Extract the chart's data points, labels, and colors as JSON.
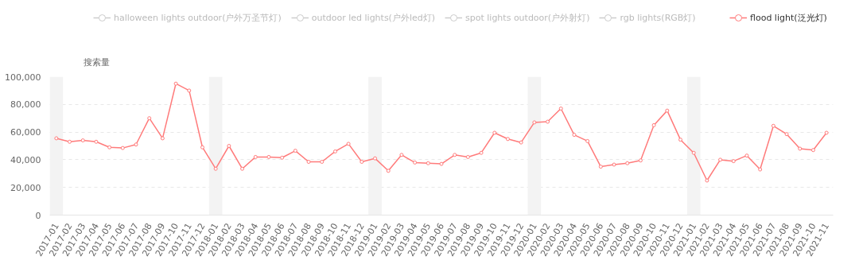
{
  "chart_data": {
    "type": "line",
    "ylabel": "搜索量",
    "categories": [
      "2017-01",
      "2017-02",
      "2017-03",
      "2017-04",
      "2017-05",
      "2017-06",
      "2017-07",
      "2017-08",
      "2017-09",
      "2017-10",
      "2017-11",
      "2017-12",
      "2018-01",
      "2018-02",
      "2018-03",
      "2018-04",
      "2018-05",
      "2018-06",
      "2018-07",
      "2018-08",
      "2018-09",
      "2018-10",
      "2018-11",
      "2018-12",
      "2019-01",
      "2019-02",
      "2019-03",
      "2019-04",
      "2019-05",
      "2019-06",
      "2019-07",
      "2019-08",
      "2019-09",
      "2019-10",
      "2019-11",
      "2019-12",
      "2020-01",
      "2020-02",
      "2020-03",
      "2020-04",
      "2020-05",
      "2020-06",
      "2020-07",
      "2020-08",
      "2020-09",
      "2020-10",
      "2020-11",
      "2020-12",
      "2021-01",
      "2021-02",
      "2021-03",
      "2021-04",
      "2021-05",
      "2021-06",
      "2021-07",
      "2021-08",
      "2021-09",
      "2021-10",
      "2021-11"
    ],
    "series": [
      {
        "name": "halloween lights outdoor(户外万圣节灯)",
        "color": "#cccccc",
        "values": [
          null,
          null,
          null,
          null,
          null,
          null,
          null,
          null,
          null,
          null,
          null,
          null,
          null,
          null,
          null,
          null,
          null,
          null,
          null,
          null,
          null,
          null,
          null,
          null,
          null,
          null,
          null,
          null,
          null,
          null,
          null,
          null,
          null,
          null,
          null,
          null,
          null,
          null,
          null,
          null,
          null,
          null,
          null,
          null,
          null,
          null,
          null,
          null,
          null,
          null,
          null,
          null,
          null,
          null,
          null,
          null,
          null,
          null,
          null
        ]
      },
      {
        "name": "outdoor led lights(户外led灯)",
        "color": "#cccccc",
        "values": [
          null,
          null,
          null,
          null,
          null,
          null,
          null,
          null,
          null,
          null,
          null,
          null,
          null,
          null,
          null,
          null,
          null,
          null,
          null,
          null,
          null,
          null,
          null,
          null,
          null,
          null,
          null,
          null,
          null,
          null,
          null,
          null,
          null,
          null,
          null,
          null,
          null,
          null,
          null,
          null,
          null,
          null,
          null,
          null,
          null,
          null,
          null,
          null,
          null,
          null,
          null,
          null,
          null,
          null,
          null,
          null,
          null,
          null,
          null
        ]
      },
      {
        "name": "spot lights outdoor(户外射灯)",
        "color": "#cccccc",
        "values": [
          null,
          null,
          null,
          null,
          null,
          null,
          null,
          null,
          null,
          null,
          null,
          null,
          null,
          null,
          null,
          null,
          null,
          null,
          null,
          null,
          null,
          null,
          null,
          null,
          null,
          null,
          null,
          null,
          null,
          null,
          null,
          null,
          null,
          null,
          null,
          null,
          null,
          null,
          null,
          null,
          null,
          null,
          null,
          null,
          null,
          null,
          null,
          null,
          null,
          null,
          null,
          null,
          null,
          null,
          null,
          null,
          null,
          null,
          null
        ]
      },
      {
        "name": "rgb lights(RGB灯)",
        "color": "#cccccc",
        "values": [
          null,
          null,
          null,
          null,
          null,
          null,
          null,
          null,
          null,
          null,
          null,
          null,
          null,
          null,
          null,
          null,
          null,
          null,
          null,
          null,
          null,
          null,
          null,
          null,
          null,
          null,
          null,
          null,
          null,
          null,
          null,
          null,
          null,
          null,
          null,
          null,
          null,
          null,
          null,
          null,
          null,
          null,
          null,
          null,
          null,
          null,
          null,
          null,
          null,
          null,
          null,
          null,
          null,
          null,
          null,
          null,
          null,
          null,
          null
        ]
      },
      {
        "name": "flood light(泛光灯)",
        "color": "#ff7b7b",
        "values": [
          55500,
          53000,
          54000,
          53000,
          49000,
          48500,
          51000,
          70000,
          55500,
          95000,
          90000,
          49000,
          33500,
          50000,
          33500,
          42000,
          42000,
          41500,
          46500,
          38500,
          38500,
          46000,
          51500,
          38500,
          41000,
          32000,
          43500,
          38000,
          37500,
          37000,
          43500,
          42000,
          45000,
          59500,
          55000,
          52500,
          67000,
          67500,
          77000,
          58000,
          53500,
          35000,
          36500,
          37500,
          39500,
          65000,
          75500,
          54500,
          45000,
          25000,
          40000,
          39000,
          43000,
          33000,
          64500,
          58500,
          48000,
          47000,
          59500
        ]
      }
    ],
    "ylim": [
      0,
      100000
    ],
    "yticks": [
      0,
      {
        "value": 20000,
        "label": "20,000"
      },
      {
        "value": 40000,
        "label": "40,000"
      },
      {
        "value": 60000,
        "label": "60,000"
      },
      {
        "value": 80000,
        "label": "80,000"
      },
      {
        "value": 100000,
        "label": "100,000"
      }
    ],
    "bands": [
      {
        "axis": "x",
        "from": "2017-01",
        "to": "2017-01",
        "color": "#f3f3f3"
      },
      {
        "axis": "x",
        "from": "2018-01",
        "to": "2018-01",
        "color": "#f3f3f3"
      },
      {
        "axis": "x",
        "from": "2019-01",
        "to": "2019-01",
        "color": "#f3f3f3"
      },
      {
        "axis": "x",
        "from": "2020-01",
        "to": "2020-01",
        "color": "#f3f3f3"
      },
      {
        "axis": "x",
        "from": "2021-01",
        "to": "2021-01",
        "color": "#f3f3f3"
      }
    ],
    "grid": "y",
    "legend": "top",
    "marker": "circle",
    "line_style": "solid"
  }
}
